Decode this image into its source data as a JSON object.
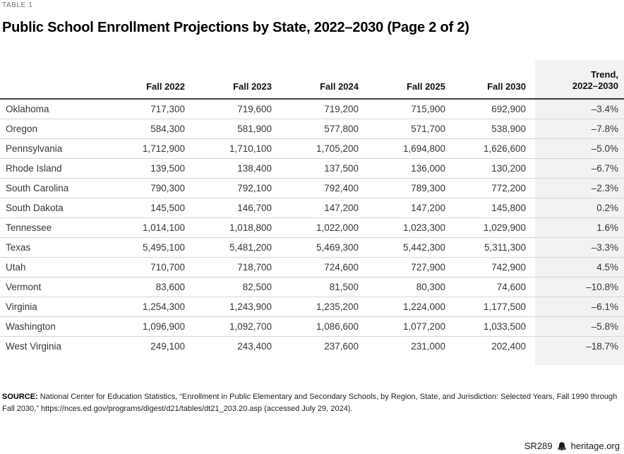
{
  "page": {
    "kicker": "TABLE 1",
    "title": "Public School Enrollment Projections by State, 2022–2030 (Page 2 of 2)",
    "source": {
      "label": "SOURCE:",
      "text": "National Center for Education Statistics, “Enrollment in Public Elementary and Secondary Schools, by Region, State, and Jurisdiction: Selected Years, Fall 1990 through Fall 2030,” https://nces.ed.gov/programs/digest/d21/tables/dt21_203.20.asp (accessed July 29, 2024)."
    },
    "footer": {
      "report_id": "SR289",
      "logo_icon": "liberty-bell-icon",
      "site": "heritage.org"
    }
  },
  "table": {
    "year_headers": [
      "Fall 2022",
      "Fall 2023",
      "Fall 2024",
      "Fall 2025",
      "Fall 2030"
    ],
    "trend_header": "Trend,\n2022–2030"
  },
  "chart_data": {
    "type": "table",
    "title": "Public School Enrollment Projections by State, 2022–2030 (Page 2 of 2)",
    "columns": [
      "",
      "Fall 2022",
      "Fall 2023",
      "Fall 2024",
      "Fall 2025",
      "Fall 2030",
      "Trend, 2022–2030"
    ],
    "rows": [
      [
        "Oklahoma",
        "717,300",
        "719,600",
        "719,200",
        "715,900",
        "692,900",
        "–3.4%"
      ],
      [
        "Oregon",
        "584,300",
        "581,900",
        "577,800",
        "571,700",
        "538,900",
        "–7.8%"
      ],
      [
        "Pennsylvania",
        "1,712,900",
        "1,710,100",
        "1,705,200",
        "1,694,800",
        "1,626,600",
        "–5.0%"
      ],
      [
        "Rhode Island",
        "139,500",
        "138,400",
        "137,500",
        "136,000",
        "130,200",
        "–6.7%"
      ],
      [
        "South Carolina",
        "790,300",
        "792,100",
        "792,400",
        "789,300",
        "772,200",
        "–2.3%"
      ],
      [
        "South Dakota",
        "145,500",
        "146,700",
        "147,200",
        "147,200",
        "145,800",
        "0.2%"
      ],
      [
        "Tennessee",
        "1,014,100",
        "1,018,800",
        "1,022,000",
        "1,023,300",
        "1,029,900",
        "1.6%"
      ],
      [
        "Texas",
        "5,495,100",
        "5,481,200",
        "5,469,300",
        "5,442,300",
        "5,311,300",
        "–3.3%"
      ],
      [
        "Utah",
        "710,700",
        "718,700",
        "724,600",
        "727,900",
        "742,900",
        "4.5%"
      ],
      [
        "Vermont",
        "83,600",
        "82,500",
        "81,500",
        "80,300",
        "74,600",
        "–10.8%"
      ],
      [
        "Virginia",
        "1,254,300",
        "1,243,900",
        "1,235,200",
        "1,224,000",
        "1,177,500",
        "–6.1%"
      ],
      [
        "Washington",
        "1,096,900",
        "1,092,700",
        "1,086,600",
        "1,077,200",
        "1,033,500",
        "–5.8%"
      ],
      [
        "West Virginia",
        "249,100",
        "243,400",
        "237,600",
        "231,000",
        "202,400",
        "–18.7%"
      ]
    ]
  },
  "colors": {
    "trend_column_bg": "#f2f2f0",
    "header_rule": "#3b3b3b",
    "row_rule": "#d6d6d6",
    "kicker_text": "#757575",
    "body_text": "#363636"
  }
}
